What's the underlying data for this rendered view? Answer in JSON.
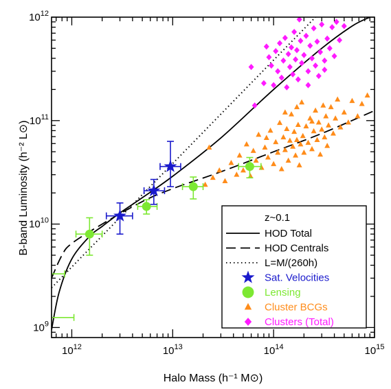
{
  "chart_data": {
    "type": "scatter",
    "xlabel": "Halo Mass (h⁻¹ M⊙)",
    "ylabel": "B-band Luminosity (h⁻² L⊙)",
    "xscale": "log",
    "yscale": "log",
    "xlim": [
      630000000000.0,
      1000000000000000.0
    ],
    "ylim": [
      800000000.0,
      1000000000000.0
    ],
    "x_ticks": [
      {
        "value": 1000000000000.0,
        "mant": "10",
        "exp": "12"
      },
      {
        "value": 10000000000000.0,
        "mant": "10",
        "exp": "13"
      },
      {
        "value": 100000000000000.0,
        "mant": "10",
        "exp": "14"
      },
      {
        "value": 1000000000000000.0,
        "mant": "10",
        "exp": "15"
      }
    ],
    "y_ticks": [
      {
        "value": 1000000000.0,
        "mant": "10",
        "exp": "9"
      },
      {
        "value": 10000000000.0,
        "mant": "10",
        "exp": "10"
      },
      {
        "value": 100000000000.0,
        "mant": "10",
        "exp": "11"
      },
      {
        "value": 1000000000000.0,
        "mant": "10",
        "exp": "12"
      }
    ],
    "legend": {
      "placement": "bottom-right",
      "title": "z~0.1",
      "entries": [
        {
          "label": "HOD Total",
          "style": "solid",
          "color": "#000000"
        },
        {
          "label": "HOD Centrals",
          "style": "dashed",
          "color": "#000000"
        },
        {
          "label": "L=M/(260h)",
          "style": "dotted",
          "color": "#000000"
        },
        {
          "label": "Sat. Velocities",
          "style": "star",
          "color": "#1a1acc"
        },
        {
          "label": "Lensing",
          "style": "circle",
          "color": "#7de832"
        },
        {
          "label": "Cluster BCGs",
          "style": "triangle",
          "color": "#ff8c1a"
        },
        {
          "label": "Clusters (Total)",
          "style": "diamond",
          "color": "#ff1aff"
        }
      ]
    },
    "series": [
      {
        "name": "HOD Total",
        "kind": "line",
        "style": "solid",
        "color": "#000000",
        "x": [
          630000000000.0,
          750000000000.0,
          1000000000000.0,
          1500000000000.0,
          2000000000000.0,
          3000000000000.0,
          5000000000000.0,
          10000000000000.0,
          30000000000000.0,
          100000000000000.0,
          300000000000000.0,
          600000000000000.0,
          900000000000000.0
        ],
        "y": [
          950000000.0,
          2200000000.0,
          4600000000.0,
          7600000000.0,
          9500000000.0,
          12800000000.0,
          18000000000.0,
          29000000000.0,
          68000000000.0,
          200000000000.0,
          500000000000.0,
          820000000000.0,
          1000000000000.0
        ]
      },
      {
        "name": "HOD Centrals",
        "kind": "line",
        "style": "dashed",
        "color": "#000000",
        "x": [
          630000000000.0,
          800000000000.0,
          1000000000000.0,
          2000000000000.0,
          5000000000000.0,
          10000000000000.0,
          30000000000000.0,
          100000000000000.0,
          300000000000000.0,
          1000000000000000.0
        ],
        "y": [
          3000000000.0,
          5000000000.0,
          6500000000.0,
          10000000000.0,
          16500000000.0,
          22000000000.0,
          32000000000.0,
          50000000000.0,
          75000000000.0,
          125000000000.0
        ]
      },
      {
        "name": "L=M/(260h)",
        "kind": "line",
        "style": "dotted",
        "color": "#000000",
        "x": [
          630000000000.0,
          1000000000000.0,
          10000000000000.0,
          100000000000000.0,
          260000000000000.0
        ],
        "y": [
          2420000000.0,
          3850000000.0,
          38500000000.0,
          385000000000.0,
          1000000000000.0
        ]
      },
      {
        "name": "Sat. Velocities",
        "kind": "points",
        "marker": "star",
        "color": "#1a1acc",
        "points": [
          {
            "x": 3000000000000.0,
            "y": 12000000000.0,
            "xlo": 2200000000000.0,
            "xhi": 4000000000000.0,
            "ylo": 8000000000.0,
            "yhi": 16000000000.0
          },
          {
            "x": 6500000000000.0,
            "y": 21000000000.0,
            "xlo": 5200000000000.0,
            "xhi": 8300000000000.0,
            "ylo": 15500000000.0,
            "yhi": 27000000000.0
          },
          {
            "x": 9500000000000.0,
            "y": 36000000000.0,
            "xlo": 7500000000000.0,
            "xhi": 12000000000000.0,
            "ylo": 23000000000.0,
            "yhi": 63000000000.0
          }
        ]
      },
      {
        "name": "Lensing",
        "kind": "points",
        "marker": "circle",
        "color": "#7de832",
        "points": [
          {
            "x": 1500000000000.0,
            "y": 8000000000.0,
            "xlo": 1100000000000.0,
            "xhi": 2000000000000.0,
            "ylo": 5000000000.0,
            "yhi": 11500000000.0
          },
          {
            "x": 5500000000000.0,
            "y": 14800000000.0,
            "xlo": 4500000000000.0,
            "xhi": 7000000000000.0,
            "ylo": 12500000000.0,
            "yhi": 17200000000.0
          },
          {
            "x": 16000000000000.0,
            "y": 23000000000.0,
            "xlo": 12500000000000.0,
            "xhi": 20000000000000.0,
            "ylo": 17500000000.0,
            "yhi": 28500000000.0
          },
          {
            "x": 58000000000000.0,
            "y": 36000000000.0,
            "xlo": 45000000000000.0,
            "xhi": 75000000000000.0,
            "ylo": 28000000000.0,
            "yhi": 44000000000.0
          },
          {
            "x": 630000000000.0,
            "y": 3300000000.0,
            "xlo": 630000000000.0,
            "xhi": 850000000000.0
          },
          {
            "x": 630000000000.0,
            "y": 1250000000.0,
            "xlo": 630000000000.0,
            "xhi": 1050000000000.0
          }
        ]
      },
      {
        "name": "Cluster BCGs",
        "kind": "points",
        "marker": "triangle",
        "color": "#ff8c1a",
        "points": [
          {
            "x": 21000000000000.0,
            "y": 24000000000.0
          },
          {
            "x": 25000000000000.0,
            "y": 28000000000.0
          },
          {
            "x": 23000000000000.0,
            "y": 55000000000.0
          },
          {
            "x": 29000000000000.0,
            "y": 33000000000.0
          },
          {
            "x": 33000000000000.0,
            "y": 26000000000.0
          },
          {
            "x": 38000000000000.0,
            "y": 39000000000.0
          },
          {
            "x": 43000000000000.0,
            "y": 30000000000.0
          },
          {
            "x": 46000000000000.0,
            "y": 46000000000.0
          },
          {
            "x": 50000000000000.0,
            "y": 33000000000.0
          },
          {
            "x": 54000000000000.0,
            "y": 59000000000.0
          },
          {
            "x": 59000000000000.0,
            "y": 29000000000.0
          },
          {
            "x": 63000000000000.0,
            "y": 51000000000.0
          },
          {
            "x": 67000000000000.0,
            "y": 41000000000.0
          },
          {
            "x": 71000000000000.0,
            "y": 73000000000.0
          },
          {
            "x": 76000000000000.0,
            "y": 35000000000.0
          },
          {
            "x": 82000000000000.0,
            "y": 55000000000.0
          },
          {
            "x": 88000000000000.0,
            "y": 44000000000.0
          },
          {
            "x": 93000000000000.0,
            "y": 80000000000.0
          },
          {
            "x": 100000000000000.0,
            "y": 38000000000.0
          },
          {
            "x": 105000000000000.0,
            "y": 62000000000.0
          },
          {
            "x": 110000000000000.0,
            "y": 49000000000.0
          },
          {
            "x": 115000000000000.0,
            "y": 95000000000.0
          },
          {
            "x": 120000000000000.0,
            "y": 34000000000.0
          },
          {
            "x": 125000000000000.0,
            "y": 69000000000.0
          },
          {
            "x": 130000000000000.0,
            "y": 52000000000.0
          },
          {
            "x": 135000000000000.0,
            "y": 83000000000.0
          },
          {
            "x": 140000000000000.0,
            "y": 41000000000.0
          },
          {
            "x": 145000000000000.0,
            "y": 64000000000.0
          },
          {
            "x": 150000000000000.0,
            "y": 115000000000.0
          },
          {
            "x": 155000000000000.0,
            "y": 56000000000.0
          },
          {
            "x": 160000000000000.0,
            "y": 78000000000.0
          },
          {
            "x": 165000000000000.0,
            "y": 46000000000.0
          },
          {
            "x": 170000000000000.0,
            "y": 65000000000.0
          },
          {
            "x": 175000000000000.0,
            "y": 91000000000.0
          },
          {
            "x": 180000000000000.0,
            "y": 37000000000.0
          },
          {
            "x": 185000000000000.0,
            "y": 59000000000.0
          },
          {
            "x": 190000000000000.0,
            "y": 150000000000.0
          },
          {
            "x": 195000000000000.0,
            "y": 71000000000.0
          },
          {
            "x": 200000000000000.0,
            "y": 49000000000.0
          },
          {
            "x": 210000000000000.0,
            "y": 88000000000.0
          },
          {
            "x": 220000000000000.0,
            "y": 61000000000.0
          },
          {
            "x": 230000000000000.0,
            "y": 105000000000.0
          },
          {
            "x": 240000000000000.0,
            "y": 53000000000.0
          },
          {
            "x": 250000000000000.0,
            "y": 79000000000.0
          },
          {
            "x": 260000000000000.0,
            "y": 125000000000.0
          },
          {
            "x": 270000000000000.0,
            "y": 65000000000.0
          },
          {
            "x": 280000000000000.0,
            "y": 96000000000.0
          },
          {
            "x": 290000000000000.0,
            "y": 47000000000.0
          },
          {
            "x": 300000000000000.0,
            "y": 82000000000.0
          },
          {
            "x": 310000000000000.0,
            "y": 140000000000.0
          },
          {
            "x": 320000000000000.0,
            "y": 69000000000.0
          },
          {
            "x": 330000000000000.0,
            "y": 110000000000.0
          },
          {
            "x": 340000000000000.0,
            "y": 57000000000.0
          },
          {
            "x": 350000000000000.0,
            "y": 90000000000.0
          },
          {
            "x": 370000000000000.0,
            "y": 135000000000.0
          },
          {
            "x": 390000000000000.0,
            "y": 75000000000.0
          },
          {
            "x": 410000000000000.0,
            "y": 105000000000.0
          },
          {
            "x": 430000000000000.0,
            "y": 160000000000.0
          },
          {
            "x": 460000000000000.0,
            "y": 86000000000.0
          },
          {
            "x": 500000000000000.0,
            "y": 120000000000.0
          },
          {
            "x": 550000000000000.0,
            "y": 96000000000.0
          },
          {
            "x": 600000000000000.0,
            "y": 155000000000.0
          },
          {
            "x": 680000000000000.0,
            "y": 110000000000.0
          },
          {
            "x": 750000000000000.0,
            "y": 145000000000.0
          },
          {
            "x": 850000000000000.0,
            "y": 175000000000.0
          },
          {
            "x": 130000000000000.0,
            "y": 120000000000.0
          },
          {
            "x": 170000000000000.0,
            "y": 135000000000.0
          },
          {
            "x": 240000000000000.0,
            "y": 98000000000.0
          },
          {
            "x": 85000000000000.0,
            "y": 68000000000.0
          }
        ]
      },
      {
        "name": "Clusters (Total)",
        "kind": "points",
        "marker": "diamond",
        "color": "#ff1aff",
        "points": [
          {
            "x": 60000000000000.0,
            "y": 330000000000.0
          },
          {
            "x": 65000000000000.0,
            "y": 140000000000.0
          },
          {
            "x": 80000000000000.0,
            "y": 230000000000.0
          },
          {
            "x": 85000000000000.0,
            "y": 520000000000.0
          },
          {
            "x": 90000000000000.0,
            "y": 410000000000.0
          },
          {
            "x": 95000000000000.0,
            "y": 340000000000.0
          },
          {
            "x": 100000000000000.0,
            "y": 220000000000.0
          },
          {
            "x": 105000000000000.0,
            "y": 470000000000.0
          },
          {
            "x": 110000000000000.0,
            "y": 300000000000.0
          },
          {
            "x": 115000000000000.0,
            "y": 560000000000.0
          },
          {
            "x": 120000000000000.0,
            "y": 260000000000.0
          },
          {
            "x": 125000000000000.0,
            "y": 380000000000.0
          },
          {
            "x": 130000000000000.0,
            "y": 630000000000.0
          },
          {
            "x": 135000000000000.0,
            "y": 210000000000.0
          },
          {
            "x": 140000000000000.0,
            "y": 440000000000.0
          },
          {
            "x": 145000000000000.0,
            "y": 330000000000.0
          },
          {
            "x": 150000000000000.0,
            "y": 510000000000.0
          },
          {
            "x": 155000000000000.0,
            "y": 280000000000.0
          },
          {
            "x": 160000000000000.0,
            "y": 720000000000.0
          },
          {
            "x": 165000000000000.0,
            "y": 390000000000.0
          },
          {
            "x": 170000000000000.0,
            "y": 480000000000.0
          },
          {
            "x": 175000000000000.0,
            "y": 250000000000.0
          },
          {
            "x": 180000000000000.0,
            "y": 950000000000.0
          },
          {
            "x": 185000000000000.0,
            "y": 590000000000.0
          },
          {
            "x": 190000000000000.0,
            "y": 360000000000.0
          },
          {
            "x": 200000000000000.0,
            "y": 430000000000.0
          },
          {
            "x": 210000000000000.0,
            "y": 660000000000.0
          },
          {
            "x": 220000000000000.0,
            "y": 300000000000.0
          },
          {
            "x": 230000000000000.0,
            "y": 530000000000.0
          },
          {
            "x": 240000000000000.0,
            "y": 400000000000.0
          },
          {
            "x": 250000000000000.0,
            "y": 780000000000.0
          },
          {
            "x": 260000000000000.0,
            "y": 340000000000.0
          },
          {
            "x": 270000000000000.0,
            "y": 580000000000.0
          },
          {
            "x": 280000000000000.0,
            "y": 270000000000.0
          },
          {
            "x": 290000000000000.0,
            "y": 460000000000.0
          },
          {
            "x": 300000000000000.0,
            "y": 850000000000.0
          },
          {
            "x": 320000000000000.0,
            "y": 380000000000.0
          },
          {
            "x": 340000000000000.0,
            "y": 620000000000.0
          },
          {
            "x": 360000000000000.0,
            "y": 500000000000.0
          },
          {
            "x": 380000000000000.0,
            "y": 800000000000.0
          },
          {
            "x": 400000000000000.0,
            "y": 420000000000.0
          },
          {
            "x": 420000000000000.0,
            "y": 900000000000.0
          },
          {
            "x": 450000000000000.0,
            "y": 600000000000.0
          },
          {
            "x": 500000000000000.0,
            "y": 820000000000.0
          },
          {
            "x": 220000000000000.0,
            "y": 220000000000.0
          },
          {
            "x": 320000000000000.0,
            "y": 310000000000.0
          }
        ]
      }
    ]
  }
}
